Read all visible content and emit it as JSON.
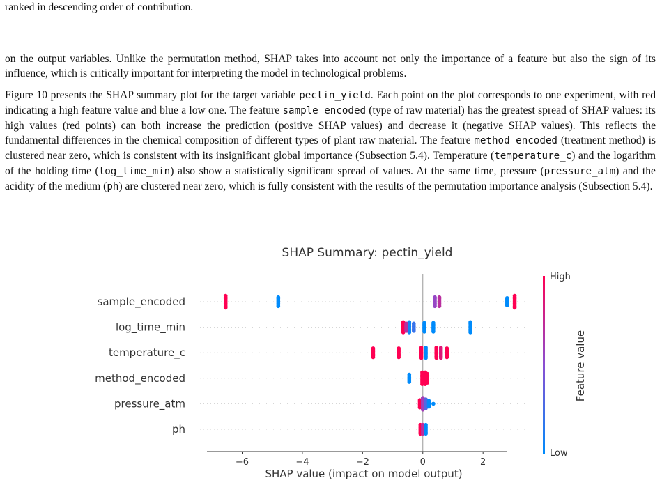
{
  "paper": {
    "top_fragment": "ranked in descending order of contribution.",
    "para1": "on the output variables. Unlike the permutation method, SHAP takes into account not only the importance of a feature but also the sign of its influence, which is critically important for interpreting the model in technological problems.",
    "para2": [
      {
        "t": "Figure 10 presents the SHAP summary plot for the target variable "
      },
      {
        "t": "pectin_yield",
        "code": true
      },
      {
        "t": ". Each point on the plot corresponds to one experiment, with red indicating a high feature value and blue a low one. The feature "
      },
      {
        "t": "sample_encoded",
        "code": true
      },
      {
        "t": " (type of raw material) has the greatest spread of SHAP values: its high values (red points) can both increase the prediction (positive SHAP values) and decrease it (negative SHAP values). This reflects the fundamental differences in the chemical composition of different types of plant raw material. The feature "
      },
      {
        "t": "method_encoded",
        "code": true
      },
      {
        "t": " (treatment method) is clustered near zero, which is consistent with its insignificant global importance (Subsection 5.4). Temperature ("
      },
      {
        "t": "temperature_c",
        "code": true
      },
      {
        "t": ") and the logarithm of the holding time ("
      },
      {
        "t": "log_time_min",
        "code": true
      },
      {
        "t": ") also show a statistically significant spread of values. At the same time, pressure ("
      },
      {
        "t": "pressure_atm",
        "code": true
      },
      {
        "t": ") and the acidity of the medium ("
      },
      {
        "t": "ph",
        "code": true
      },
      {
        "t": ") are clustered near zero, which is fully consistent with the results of the permutation importance analysis (Subsection 5.4)."
      }
    ]
  },
  "chart_data": {
    "type": "scatter",
    "title": "SHAP Summary: pectin_yield",
    "xlabel": "SHAP value (impact on model output)",
    "xlim": [
      -7.4,
      3.5
    ],
    "xticks": [
      -6,
      -4,
      -2,
      0,
      2
    ],
    "xtick_labels": [
      "−6",
      "−4",
      "−2",
      "0",
      "2"
    ],
    "colorbar": {
      "label": "Feature value",
      "high": "High",
      "low": "Low",
      "high_color": "#ff0052",
      "low_color": "#008bfb"
    },
    "features": [
      {
        "name": "sample_encoded",
        "points": [
          {
            "x": -6.55,
            "v": 1.0,
            "n": 9
          },
          {
            "x": -4.8,
            "v": 0.0,
            "n": 7
          },
          {
            "x": 0.4,
            "v": 0.55,
            "n": 7
          },
          {
            "x": 0.55,
            "v": 0.7,
            "n": 7
          },
          {
            "x": 2.8,
            "v": 0.0,
            "n": 6
          },
          {
            "x": 3.05,
            "v": 1.0,
            "n": 9
          }
        ]
      },
      {
        "name": "log_time_min",
        "points": [
          {
            "x": -0.65,
            "v": 1.0,
            "n": 8
          },
          {
            "x": -0.45,
            "v": 0.05,
            "n": 8
          },
          {
            "x": -0.55,
            "v": 0.7,
            "n": 6
          },
          {
            "x": -0.3,
            "v": 0.2,
            "n": 6
          },
          {
            "x": 0.05,
            "v": 0.0,
            "n": 7
          },
          {
            "x": 0.35,
            "v": 0.0,
            "n": 7
          },
          {
            "x": 1.58,
            "v": 0.0,
            "n": 8
          }
        ]
      },
      {
        "name": "temperature_c",
        "points": [
          {
            "x": -1.65,
            "v": 1.0,
            "n": 7
          },
          {
            "x": -0.8,
            "v": 1.0,
            "n": 7
          },
          {
            "x": -0.05,
            "v": 1.0,
            "n": 8
          },
          {
            "x": 0.1,
            "v": 0.0,
            "n": 8
          },
          {
            "x": 0.45,
            "v": 1.0,
            "n": 8
          },
          {
            "x": 0.6,
            "v": 0.85,
            "n": 8
          },
          {
            "x": 0.8,
            "v": 1.0,
            "n": 7
          }
        ]
      },
      {
        "name": "method_encoded",
        "points": [
          {
            "x": -0.45,
            "v": 0.0,
            "n": 6
          },
          {
            "x": -0.02,
            "v": 1.0,
            "n": 9
          },
          {
            "x": 0.08,
            "v": 1.0,
            "n": 9
          },
          {
            "x": 0.15,
            "v": 1.0,
            "n": 7
          }
        ]
      },
      {
        "name": "pressure_atm",
        "points": [
          {
            "x": -0.1,
            "v": 1.0,
            "n": 6
          },
          {
            "x": 0.0,
            "v": 0.6,
            "n": 9
          },
          {
            "x": 0.1,
            "v": 0.3,
            "n": 7
          },
          {
            "x": 0.2,
            "v": 0.0,
            "n": 5
          },
          {
            "x": 0.35,
            "v": 0.0,
            "n": 1
          }
        ]
      },
      {
        "name": "ph",
        "points": [
          {
            "x": -0.08,
            "v": 1.0,
            "n": 7
          },
          {
            "x": 0.0,
            "v": 0.7,
            "n": 7
          },
          {
            "x": 0.1,
            "v": 0.0,
            "n": 7
          }
        ]
      }
    ]
  }
}
